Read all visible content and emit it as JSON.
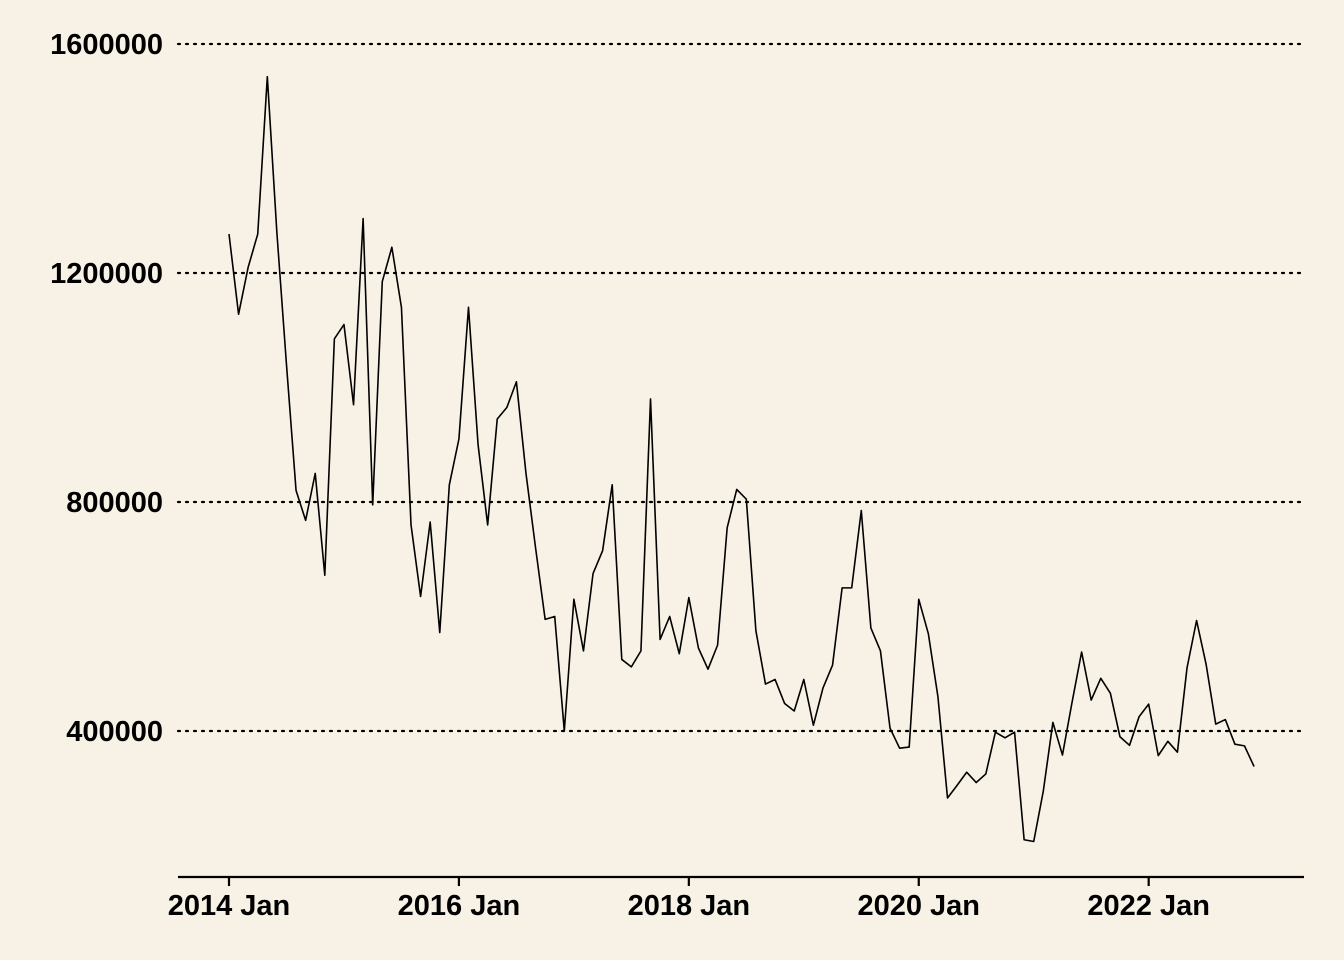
{
  "chart_data": {
    "type": "line",
    "title": "",
    "xlabel": "",
    "ylabel": "",
    "x_tick_labels": [
      "2014 Jan",
      "2016 Jan",
      "2018 Jan",
      "2020 Jan",
      "2022 Jan"
    ],
    "y_tick_labels": [
      "400000",
      "800000",
      "1200000",
      "1600000"
    ],
    "y_ticks": [
      400000,
      800000,
      1200000,
      1600000
    ],
    "ylim": [
      150000,
      1650000
    ],
    "xlim": [
      "2013-07",
      "2023-03"
    ],
    "grid": "horizontal dotted",
    "legend": "none",
    "colors": {
      "background": "#f7f2e5",
      "line": "#000000"
    },
    "series": [
      {
        "x_start": "2014-01",
        "frequency": "monthly",
        "values": [
          1268000,
          1128000,
          1210000,
          1268000,
          1543000,
          1270000,
          1040000,
          820000,
          768000,
          850000,
          672000,
          1085000,
          1110000,
          970000,
          1295000,
          795000,
          1185000,
          1245000,
          1140000,
          760000,
          635000,
          765000,
          572000,
          830000,
          910000,
          1140000,
          900000,
          760000,
          945000,
          965000,
          1010000,
          850000,
          720000,
          595000,
          600000,
          400000,
          630000,
          540000,
          675000,
          715000,
          830000,
          525000,
          512000,
          540000,
          980000,
          560000,
          600000,
          535000,
          633000,
          545000,
          508000,
          550000,
          755000,
          822000,
          805000,
          575000,
          482000,
          490000,
          448000,
          435000,
          490000,
          410000,
          475000,
          515000,
          650000,
          650000,
          785000,
          580000,
          540000,
          405000,
          370000,
          372000,
          630000,
          570000,
          460000,
          283000,
          305000,
          328000,
          310000,
          325000,
          398000,
          388000,
          398000,
          210000,
          207000,
          295000,
          415000,
          358000,
          450000,
          538000,
          454000,
          492000,
          466000,
          390000,
          375000,
          425000,
          447000,
          357000,
          382000,
          363000,
          510000,
          593000,
          516000,
          412000,
          420000,
          377000,
          374000,
          338000
        ]
      }
    ]
  }
}
